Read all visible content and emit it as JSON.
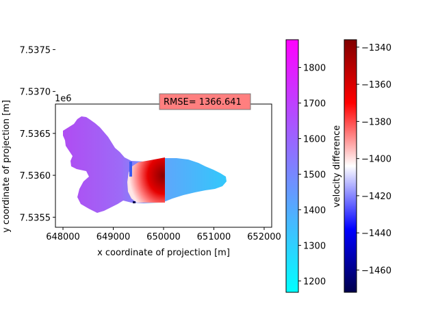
{
  "chart_data": {
    "type": "heatmap",
    "xlabel": "x coordinate of projection [m]",
    "ylabel": "y coordinate of projection [m]",
    "x_ticks": [
      "648000",
      "649000",
      "650000",
      "651000",
      "652000"
    ],
    "y_ticks": [
      "7.5355",
      "7.5360",
      "7.5365",
      "7.5370",
      "7.5375"
    ],
    "y_offset_label": "1e6",
    "xlim": [
      647850,
      652150
    ],
    "ylim": [
      7535380,
      7536850
    ],
    "annotation": "RMSE= 1366.641",
    "regions": [
      {
        "name": "glacier-velocity-field",
        "colormap": "cool",
        "x_range": [
          648100,
          651200
        ],
        "y_range": [
          7535700,
          7536600
        ],
        "velocity_range": [
          1200,
          1850
        ]
      },
      {
        "name": "difference-patch",
        "colormap": "seismic",
        "x_range": [
          649000,
          650000
        ],
        "y_range": [
          7535900,
          7536700
        ]
      }
    ],
    "colorbars": [
      {
        "name": "velocity",
        "colormap": "cool",
        "range": [
          1168,
          1878
        ],
        "ticks": [
          "1200",
          "1300",
          "1400",
          "1500",
          "1600",
          "1700",
          "1800"
        ],
        "label": ""
      },
      {
        "name": "velocity-difference",
        "colormap": "seismic",
        "range": [
          -1472,
          -1336
        ],
        "ticks": [
          "−1460",
          "−1440",
          "−1420",
          "−1400",
          "−1380",
          "−1360",
          "−1340"
        ],
        "label": "velocity difference"
      }
    ]
  }
}
